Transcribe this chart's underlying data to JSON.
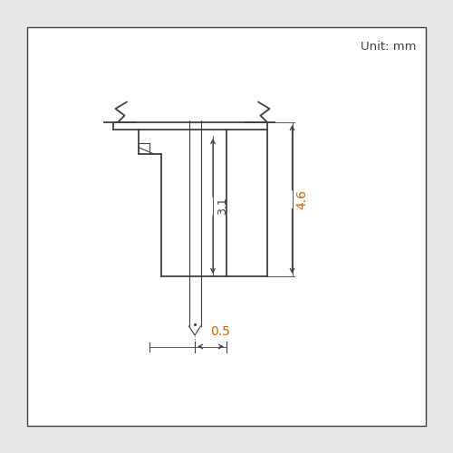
{
  "bg_color": "#e8e8e8",
  "inner_bg": "#ffffff",
  "line_color": "#404040",
  "dim_color_46": "#cc6600",
  "dim_color_31": "#404040",
  "dim_color_05": "#cc6600",
  "unit_text": "Unit: mm",
  "dim_31": "3.1",
  "dim_46": "4.6",
  "dim_05": "0.5",
  "lw": 1.3,
  "thin_lw": 0.8
}
